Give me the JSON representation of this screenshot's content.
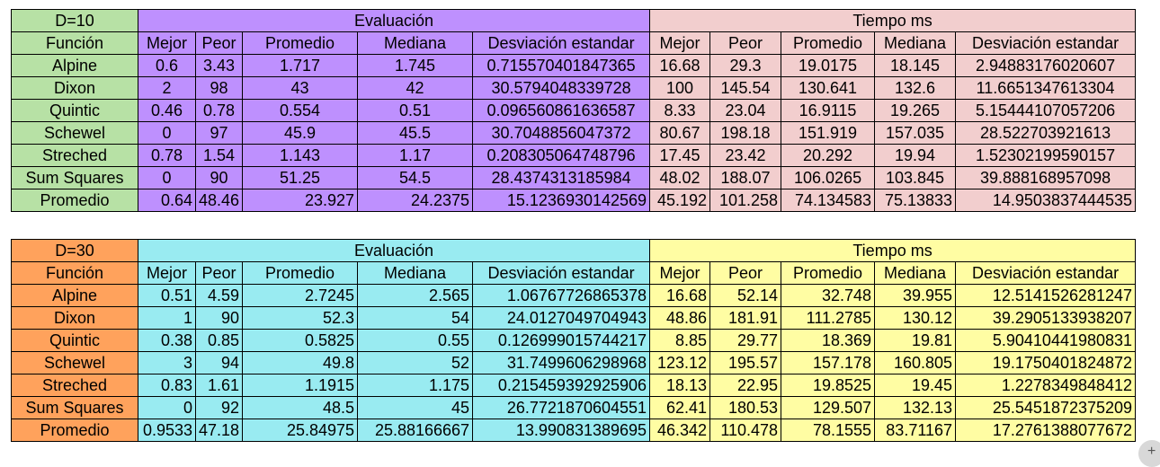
{
  "tables": [
    {
      "label": "D=10",
      "group_eval": "Evaluación",
      "group_time": "Tiempo ms",
      "func_header": "Función",
      "eval_headers": [
        "Mejor",
        "Peor",
        "Promedio",
        "Mediana",
        "Desviación estandar"
      ],
      "time_headers": [
        "Mejor",
        "Peor",
        "Promedio",
        "Mediana",
        "Desviación estandar"
      ],
      "rows": [
        [
          "Alpine",
          "0.6",
          "3.43",
          "1.717",
          "1.745",
          "0.715570401847365",
          "16.68",
          "29.3",
          "19.0175",
          "18.145",
          "2.94883176020607"
        ],
        [
          "Dixon",
          "2",
          "98",
          "43",
          "42",
          "30.5794048339728",
          "100",
          "145.54",
          "130.641",
          "132.6",
          "11.6651347613304"
        ],
        [
          "Quintic",
          "0.46",
          "0.78",
          "0.554",
          "0.51",
          "0.096560861636587",
          "8.33",
          "23.04",
          "16.9115",
          "19.265",
          "5.15444107057206"
        ],
        [
          "Schewel",
          "0",
          "97",
          "45.9",
          "45.5",
          "30.7048856047372",
          "80.67",
          "198.18",
          "151.919",
          "157.035",
          "28.522703921613"
        ],
        [
          "Streched",
          "0.78",
          "1.54",
          "1.143",
          "1.17",
          "0.208305064748796",
          "17.45",
          "23.42",
          "20.292",
          "19.94",
          "1.52302199590157"
        ],
        [
          "Sum Squares",
          "0",
          "90",
          "51.25",
          "54.5",
          "28.4374313185984",
          "48.02",
          "188.07",
          "106.0265",
          "103.845",
          "39.888168957098"
        ]
      ],
      "avg_row": [
        "Promedio",
        "0.64",
        "48.46",
        "23.927",
        "24.2375",
        "15.1236930142569",
        "45.192",
        "101.258",
        "74.134583",
        "75.13833",
        "14.9503837444535"
      ]
    },
    {
      "label": "D=30",
      "group_eval": "Evaluación",
      "group_time": "Tiempo ms",
      "func_header": "Función",
      "eval_headers": [
        "Mejor",
        "Peor",
        "Promedio",
        "Mediana",
        "Desviación estandar"
      ],
      "time_headers": [
        "Mejor",
        "Peor",
        "Promedio",
        "Mediana",
        "Desviación estandar"
      ],
      "rows": [
        [
          "Alpine",
          "0.51",
          "4.59",
          "2.7245",
          "2.565",
          "1.06767726865378",
          "16.68",
          "52.14",
          "32.748",
          "39.955",
          "12.5141526281247"
        ],
        [
          "Dixon",
          "1",
          "90",
          "52.3",
          "54",
          "24.0127049704943",
          "48.86",
          "181.91",
          "111.2785",
          "130.12",
          "39.2905133938207"
        ],
        [
          "Quintic",
          "0.38",
          "0.85",
          "0.5825",
          "0.55",
          "0.126999015744217",
          "8.85",
          "29.77",
          "18.369",
          "19.81",
          "5.90410441980831"
        ],
        [
          "Schewel",
          "3",
          "94",
          "49.8",
          "52",
          "31.7499606298968",
          "123.12",
          "195.57",
          "157.178",
          "160.805",
          "19.1750401824872"
        ],
        [
          "Streched",
          "0.83",
          "1.61",
          "1.1915",
          "1.175",
          "0.215459392925906",
          "18.13",
          "22.95",
          "19.8525",
          "19.45",
          "1.2278349848412"
        ],
        [
          "Sum Squares",
          "0",
          "92",
          "48.5",
          "45",
          "26.7721870604551",
          "62.41",
          "180.53",
          "129.507",
          "132.13",
          "25.5451872375209"
        ]
      ],
      "avg_row": [
        "Promedio",
        "0.9533",
        "47.18",
        "25.84975",
        "25.88166667",
        "13.990831389695",
        "46.342",
        "110.478",
        "78.1555",
        "83.71167",
        "17.2761388077672"
      ]
    }
  ],
  "corner_button_label": "+"
}
